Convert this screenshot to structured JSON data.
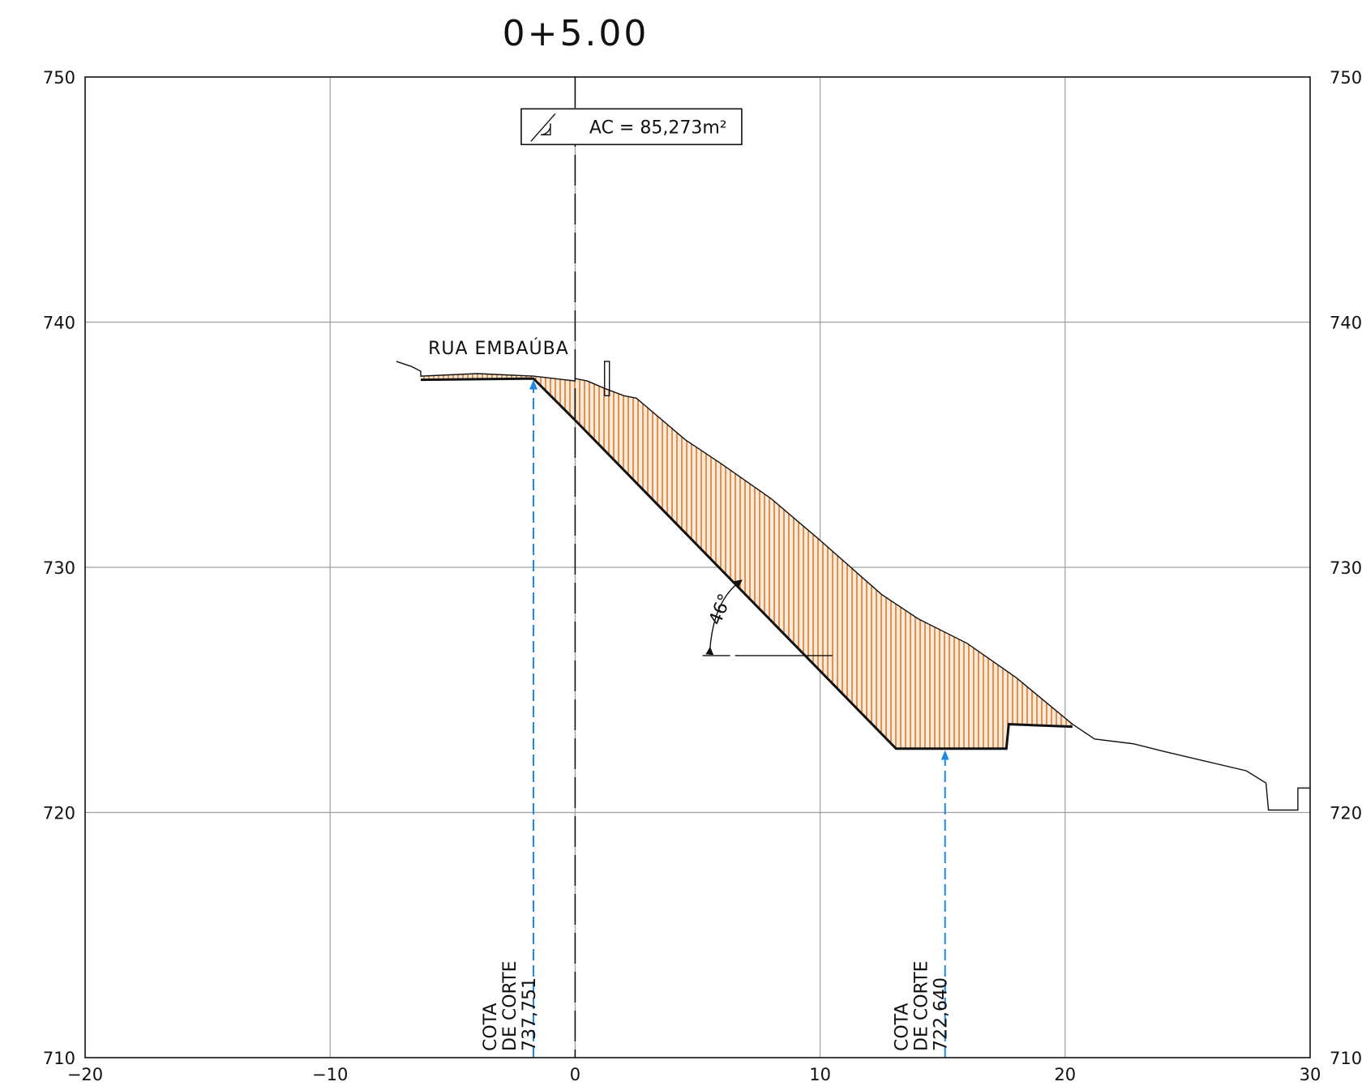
{
  "drawing": {
    "station": "0+5.00",
    "area_label": "AC = 85,273m²",
    "road_label": "RUA EMBAÚBA",
    "angle_label": "46°",
    "cut_labels": [
      {
        "x": -1.7,
        "y": 737.751,
        "lines": [
          "COTA",
          "DE CORTE",
          "737,751"
        ]
      },
      {
        "x": 15.1,
        "y": 722.64,
        "lines": [
          "COTA",
          "DE CORTE",
          "722,640"
        ]
      }
    ],
    "colors": {
      "hatch": "#c65a00",
      "fill": "#fbe8d6",
      "grid": "#9e9e9e",
      "arrow": "#1e88e5"
    }
  },
  "chart_data": {
    "type": "line",
    "title": "0+5.00",
    "xlim": [
      -20,
      30
    ],
    "ylim": [
      710,
      750
    ],
    "x_ticks": [
      "−20",
      "−10",
      "0",
      "10",
      "20",
      "30"
    ],
    "y_ticks": [
      "750",
      "740",
      "730",
      "720",
      "710"
    ],
    "grid": true,
    "series": [
      {
        "role": "terrain",
        "points": [
          [
            -7.3,
            738.4
          ],
          [
            -6.7,
            738.2
          ],
          [
            -6.3,
            738.0
          ],
          [
            -6.3,
            737.8
          ],
          [
            -4,
            737.9
          ],
          [
            -1.7,
            737.8
          ],
          [
            0,
            737.6
          ],
          [
            0,
            737.7
          ],
          [
            0.5,
            737.6
          ],
          [
            1.2,
            737.3
          ],
          [
            2,
            737.0
          ],
          [
            2.5,
            736.9
          ],
          [
            4.5,
            735.2
          ],
          [
            6,
            734.2
          ],
          [
            8,
            732.8
          ],
          [
            10,
            731.1
          ],
          [
            12.5,
            728.9
          ],
          [
            14,
            727.9
          ],
          [
            16,
            726.9
          ],
          [
            18,
            725.5
          ],
          [
            20.3,
            723.6
          ],
          [
            21.2,
            723.0
          ],
          [
            22.8,
            722.8
          ],
          [
            24,
            722.5
          ],
          [
            27.4,
            721.7
          ],
          [
            28.2,
            721.2
          ],
          [
            28.3,
            720.1
          ],
          [
            29.5,
            720.1
          ],
          [
            29.5,
            721.0
          ],
          [
            30,
            721.0
          ]
        ]
      },
      {
        "role": "cut-platform",
        "points": [
          [
            -6.3,
            737.65
          ],
          [
            -1.7,
            737.7
          ],
          [
            0,
            736.0
          ],
          [
            13.1,
            722.6
          ],
          [
            17.6,
            722.6
          ],
          [
            17.7,
            723.6
          ],
          [
            20.3,
            723.5
          ]
        ]
      }
    ],
    "centerline_x": 0,
    "post": {
      "x": 1.3,
      "y0": 737.0,
      "y1": 738.4
    }
  }
}
